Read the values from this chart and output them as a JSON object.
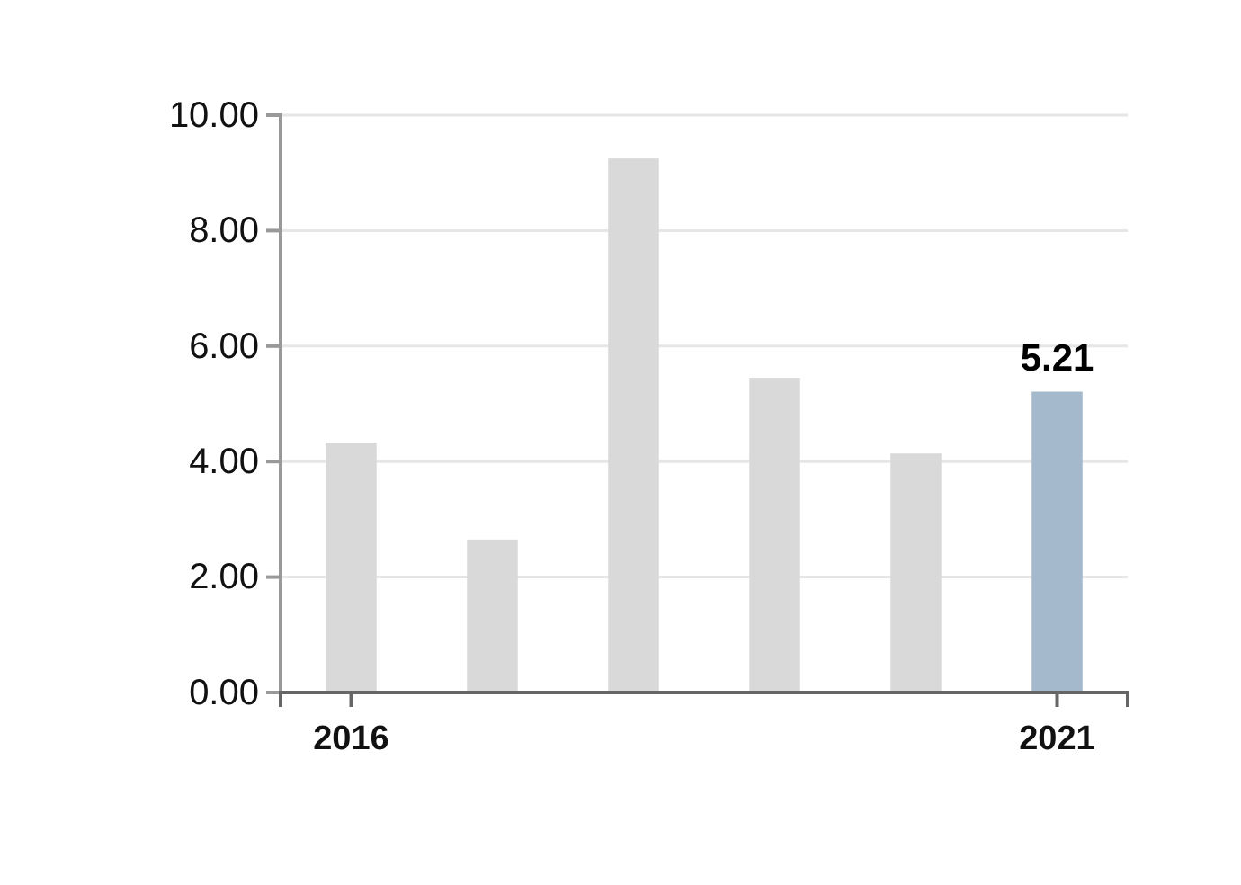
{
  "chart_data": {
    "type": "bar",
    "categories": [
      "2016",
      null,
      null,
      null,
      null,
      "2021"
    ],
    "values": [
      4.33,
      2.65,
      9.25,
      5.45,
      4.14,
      5.21
    ],
    "colors": [
      "#d9d9d9",
      "#d9d9d9",
      "#d9d9d9",
      "#d9d9d9",
      "#d9d9d9",
      "#a5b9cc"
    ],
    "value_labels": [
      null,
      null,
      null,
      null,
      null,
      "5.21"
    ],
    "ylim": [
      0,
      10
    ],
    "yticks": [
      {
        "value": 0,
        "label": "0.00"
      },
      {
        "value": 2,
        "label": "2.00"
      },
      {
        "value": 4,
        "label": "4.00"
      },
      {
        "value": 6,
        "label": "6.00"
      },
      {
        "value": 8,
        "label": "8.00"
      },
      {
        "value": 10,
        "label": "10.00"
      }
    ],
    "grid": "y"
  }
}
